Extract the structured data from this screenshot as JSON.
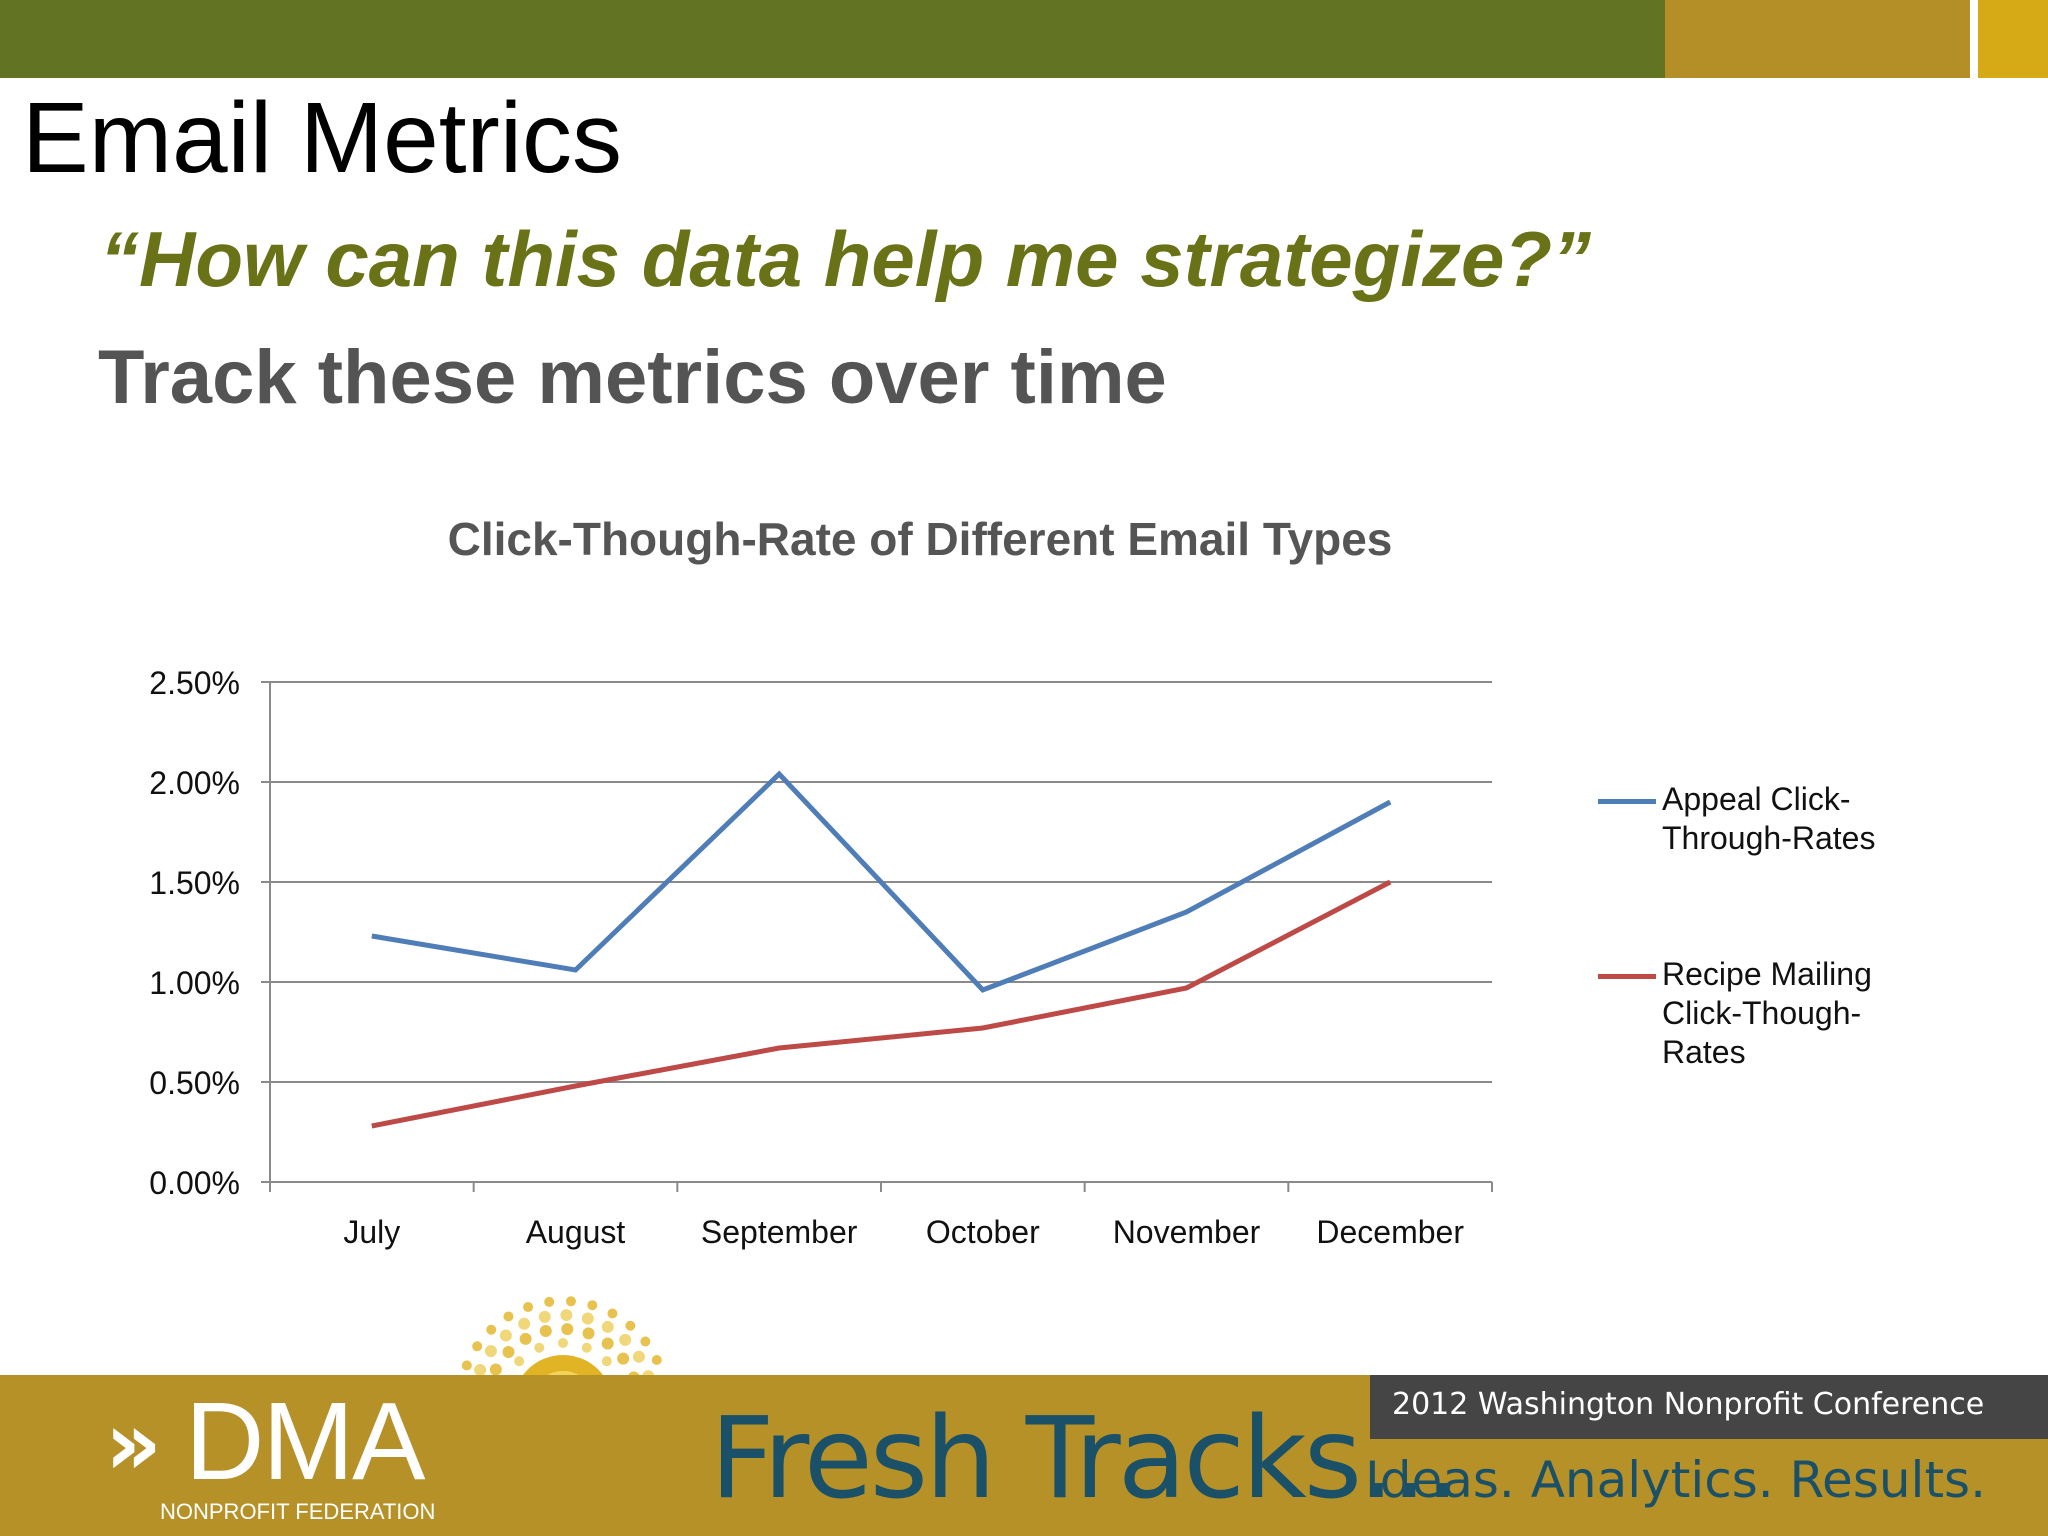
{
  "slide": {
    "title": "Email Metrics",
    "quote": "“How can this data help me strategize?”",
    "subtitle": "Track these metrics over time"
  },
  "colors": {
    "header_green": "#627424",
    "header_gold": "#b48f27",
    "header_yellow": "#d6aa16",
    "quote_olive": "#6a7217",
    "footer_gold": "#b59128",
    "footer_dark": "#454545",
    "footer_text_teal": "#1a5068"
  },
  "chart_data": {
    "type": "line",
    "title": "Click-Though-Rate of Different Email Types",
    "xlabel": "",
    "ylabel": "",
    "categories": [
      "July",
      "August",
      "September",
      "October",
      "November",
      "December"
    ],
    "series": [
      {
        "name": "Appeal Click-Through-Rates",
        "color": "#4f7db8",
        "values": [
          1.23,
          1.06,
          2.04,
          0.96,
          1.35,
          1.9
        ]
      },
      {
        "name": "Recipe Mailing Click-Though-Rates",
        "color": "#bd4a47",
        "values": [
          0.28,
          0.48,
          0.67,
          0.77,
          0.97,
          1.5
        ]
      }
    ],
    "ylim": [
      0,
      2.5
    ],
    "y_ticks": [
      "0.00%",
      "0.50%",
      "1.00%",
      "1.50%",
      "2.00%",
      "2.50%"
    ],
    "y_tick_values": [
      0,
      0.5,
      1.0,
      1.5,
      2.0,
      2.5
    ],
    "grid": true,
    "legend_position": "right"
  },
  "legend": {
    "item0": {
      "line1": "Appeal Click-",
      "line2": "Through-Rates"
    },
    "item1": {
      "line1": "Recipe Mailing",
      "line2": "Click-Though-",
      "line3": "Rates"
    }
  },
  "footer": {
    "logo_text": "DMA",
    "logo_subtext": "NONPROFIT FEDERATION",
    "brand": "Fresh Tracks...",
    "conference": "2012 Washington Nonprofit Conference",
    "tagline": "Ideas. Analytics. Results."
  },
  "icons": {
    "logo_chevrons": "double-chevron-icon",
    "sun_emblem": "sunburst-icon"
  }
}
